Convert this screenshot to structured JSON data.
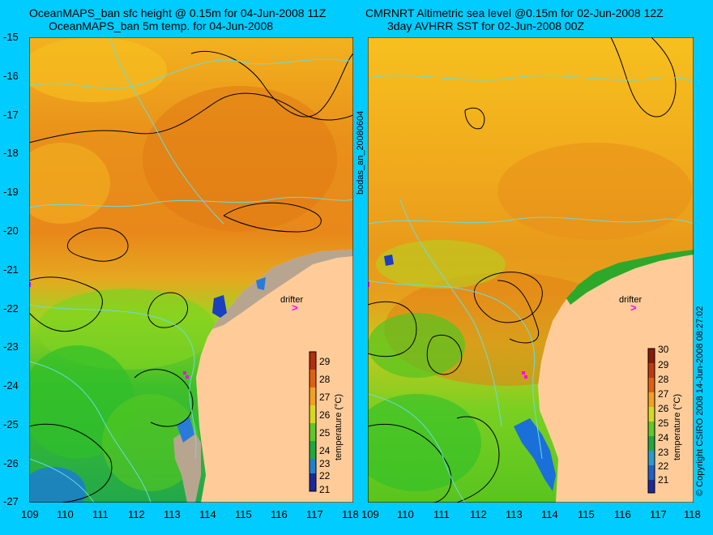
{
  "left_panel": {
    "title_line1": "OceanMAPS_ban sfc height @ 0.15m for 04-Jun-2008 11Z",
    "title_line2": "OceanMAPS_ban 5m temp. for 04-Jun-2008",
    "drifter_label": "drifter",
    "drifter_mark": ">"
  },
  "right_panel": {
    "title_line1": "CMRNRT Altimetric sea level  @0.15m  for 02-Jun-2008 12Z",
    "title_line2": "3day AVHRR SST for 02-Jun-2008 00Z",
    "drifter_label": "drifter",
    "drifter_mark": ">"
  },
  "side_label_middle": "bodas_an_20080604",
  "side_label_right": "© Copyright CSIRO 2008   14-Jun-2008 08:27:02",
  "latitude_ticks": [
    "-15",
    "-16",
    "-17",
    "-18",
    "-19",
    "-20",
    "-21",
    "-22",
    "-23",
    "-24",
    "-25",
    "-26",
    "-27"
  ],
  "longitude_ticks": [
    "109",
    "110",
    "111",
    "112",
    "113",
    "114",
    "115",
    "116",
    "117",
    "118"
  ],
  "left_colorbar": {
    "title": "temperature (°C)",
    "labels": [
      "29",
      "28",
      "27",
      "26",
      "25",
      "24",
      "23",
      "22",
      "21"
    ]
  },
  "right_colorbar": {
    "title": "temperature (°C)",
    "labels": [
      "30",
      "29",
      "28",
      "27",
      "26",
      "25",
      "24",
      "23",
      "22",
      "21"
    ]
  },
  "colors": {
    "background": "#00ccff",
    "land": "#ffcc99",
    "drifter": "#ff00ff"
  }
}
